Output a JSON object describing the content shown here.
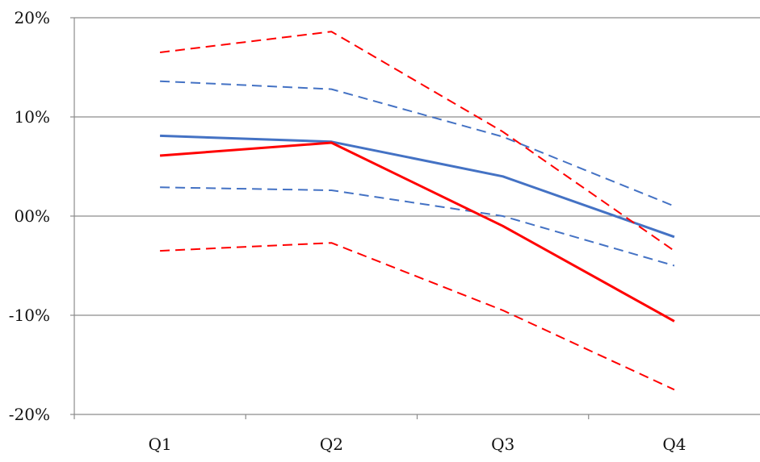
{
  "chart_data": {
    "type": "line",
    "categories": [
      "Q1",
      "Q2",
      "Q3",
      "Q4"
    ],
    "y_ticks": [
      {
        "value": 20,
        "label": "20%"
      },
      {
        "value": 10,
        "label": "10%"
      },
      {
        "value": 0,
        "label": "00%"
      },
      {
        "value": -10,
        "label": "-10%"
      },
      {
        "value": -20,
        "label": "-20%"
      }
    ],
    "ylim": [
      -20,
      20
    ],
    "grid": "horizontal",
    "legend": "none",
    "series": [
      {
        "values": [
          8.1,
          7.5,
          4.0,
          -2.1
        ],
        "color": "#4472C4",
        "style": "solid"
      },
      {
        "values": [
          13.6,
          12.8,
          8.0,
          1.0
        ],
        "color": "#4472C4",
        "style": "dashed"
      },
      {
        "values": [
          2.9,
          2.6,
          0.0,
          -5.0
        ],
        "color": "#4472C4",
        "style": "dashed"
      },
      {
        "values": [
          6.1,
          7.4,
          -1.0,
          -10.6
        ],
        "color": "#FF0000",
        "style": "solid"
      },
      {
        "values": [
          16.5,
          18.6,
          8.5,
          -3.5
        ],
        "color": "#FF0000",
        "style": "dashed"
      },
      {
        "values": [
          -3.5,
          -2.7,
          -9.5,
          -17.5
        ],
        "color": "#FF0000",
        "style": "dashed"
      }
    ]
  }
}
